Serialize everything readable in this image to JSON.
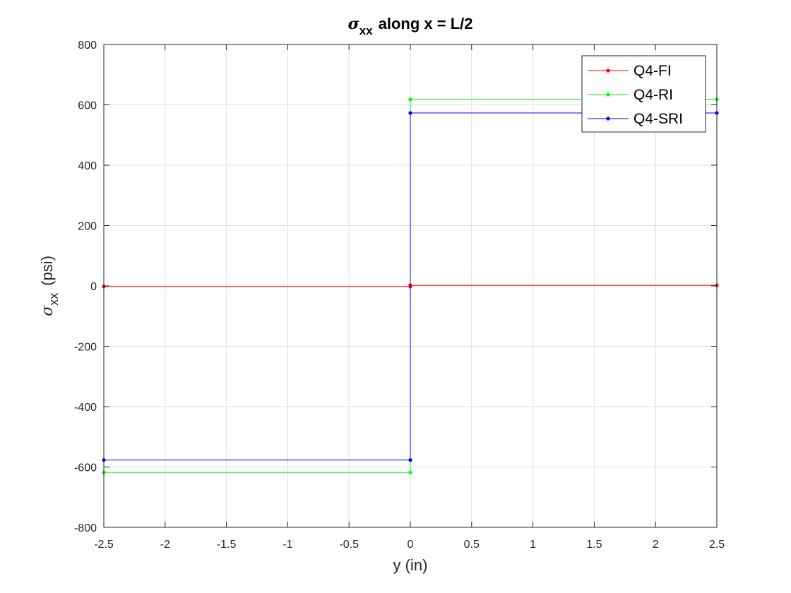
{
  "chart_data": {
    "type": "line",
    "title": {
      "symbol": "σ",
      "subscript": "xx",
      "rest": "along x = L/2"
    },
    "xlabel": "y (in)",
    "ylabel": {
      "symbol": "σ",
      "subscript": "xx",
      "rest": "(psi)"
    },
    "xlim": [
      -2.5,
      2.5
    ],
    "ylim": [
      -800,
      800
    ],
    "xticks": [
      -2.5,
      -2,
      -1.5,
      -1,
      -0.5,
      0,
      0.5,
      1,
      1.5,
      2,
      2.5
    ],
    "xtick_labels": [
      "-2.5",
      "-2",
      "-1.5",
      "-1",
      "-0.5",
      "0",
      "0.5",
      "1",
      "1.5",
      "2",
      "2.5"
    ],
    "yticks": [
      -800,
      -600,
      -400,
      -200,
      0,
      200,
      400,
      600,
      800
    ],
    "ytick_labels": [
      "-800",
      "-600",
      "-400",
      "-200",
      "0",
      "200",
      "400",
      "600",
      "800"
    ],
    "grid": true,
    "legend_position": "top-right",
    "series": [
      {
        "name": "Q4-FI",
        "color": "#ff0000",
        "marker": "dot",
        "x": [
          -2.5,
          0,
          0,
          2.5
        ],
        "y": [
          -2,
          -2,
          2,
          2
        ]
      },
      {
        "name": "Q4-RI",
        "color": "#00ff00",
        "marker": "dot",
        "x": [
          -2.5,
          0,
          0,
          2.5
        ],
        "y": [
          -618,
          -618,
          618,
          618
        ]
      },
      {
        "name": "Q4-SRI",
        "color": "#0000ff",
        "marker": "dot",
        "x": [
          -2.5,
          0,
          0,
          2.5
        ],
        "y": [
          -577,
          -577,
          573,
          573
        ]
      }
    ]
  }
}
